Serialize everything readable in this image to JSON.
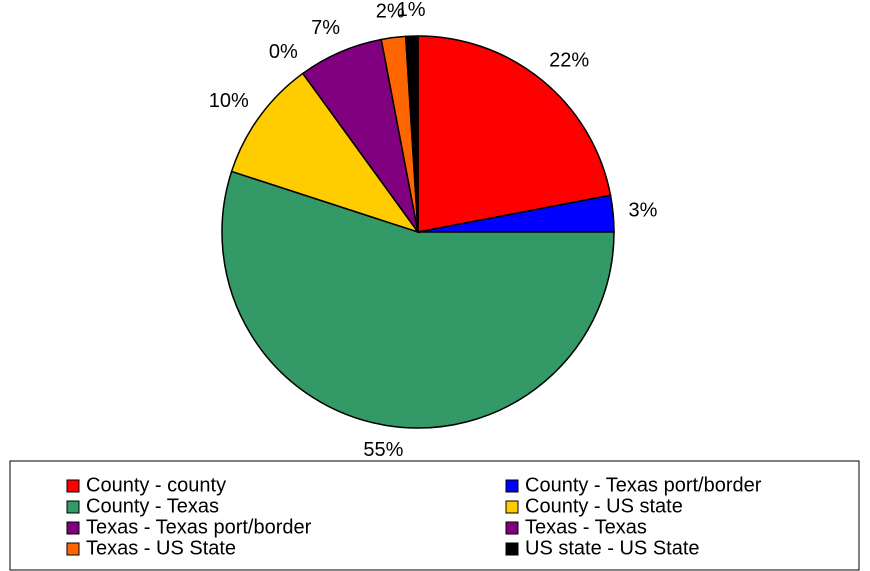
{
  "chart_data": {
    "type": "pie",
    "categories": [
      "County - county",
      "County - Texas port/border",
      "County - Texas",
      "County - US state",
      "Texas - Texas port/border",
      "Texas - Texas",
      "Texas - US State",
      "US state - US State"
    ],
    "values": [
      22,
      3,
      55,
      10,
      0,
      7,
      2,
      1
    ],
    "value_labels": [
      "22%",
      "3%",
      "55%",
      "10%",
      "0%",
      "7%",
      "2%",
      "1%"
    ],
    "colors": [
      "#ff0000",
      "#0000ff",
      "#339966",
      "#ffcc00",
      "#800080",
      "#800080",
      "#ff6600",
      "#000000"
    ],
    "legend": "bottom"
  }
}
